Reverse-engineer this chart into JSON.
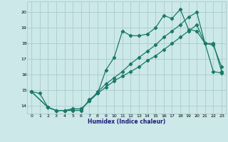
{
  "xlabel": "Humidex (Indice chaleur)",
  "background_color": "#cce8e8",
  "grid_color": "#aacccc",
  "line_color": "#1a7a6a",
  "xlim": [
    -0.5,
    23.5
  ],
  "ylim": [
    13.5,
    20.7
  ],
  "yticks": [
    14,
    15,
    16,
    17,
    18,
    19,
    20
  ],
  "xticks": [
    0,
    1,
    2,
    3,
    4,
    5,
    6,
    7,
    8,
    9,
    10,
    11,
    12,
    13,
    14,
    15,
    16,
    17,
    18,
    19,
    20,
    21,
    22,
    23
  ],
  "line1_x": [
    0,
    1,
    2,
    3,
    4,
    5,
    6,
    7,
    8,
    9,
    10,
    11,
    12,
    13,
    14,
    15,
    16,
    17,
    18,
    19,
    20,
    21,
    22,
    23
  ],
  "line1_y": [
    14.9,
    14.8,
    13.9,
    13.7,
    13.7,
    13.7,
    13.7,
    14.4,
    14.8,
    16.3,
    17.1,
    18.8,
    18.5,
    18.5,
    18.6,
    19.0,
    19.8,
    19.6,
    20.2,
    18.9,
    18.8,
    18.0,
    17.9,
    16.5
  ],
  "line2_x": [
    0,
    2,
    3,
    4,
    5,
    6,
    7,
    8,
    9,
    10,
    11,
    12,
    13,
    14,
    15,
    16,
    17,
    18,
    19,
    20,
    21,
    22,
    23
  ],
  "line2_y": [
    14.9,
    13.9,
    13.7,
    13.7,
    13.8,
    13.8,
    14.3,
    14.8,
    15.2,
    15.6,
    15.9,
    16.2,
    16.5,
    16.9,
    17.2,
    17.6,
    18.0,
    18.4,
    18.8,
    19.2,
    18.0,
    18.0,
    16.2
  ],
  "line3_x": [
    0,
    2,
    3,
    4,
    5,
    6,
    7,
    8,
    9,
    10,
    11,
    12,
    13,
    14,
    15,
    16,
    17,
    18,
    19,
    20,
    21,
    22,
    23
  ],
  "line3_y": [
    14.9,
    13.9,
    13.7,
    13.7,
    13.8,
    13.8,
    14.3,
    14.9,
    15.4,
    15.8,
    16.2,
    16.7,
    17.1,
    17.5,
    17.9,
    18.4,
    18.8,
    19.2,
    19.7,
    20.0,
    18.0,
    16.2,
    16.1
  ]
}
